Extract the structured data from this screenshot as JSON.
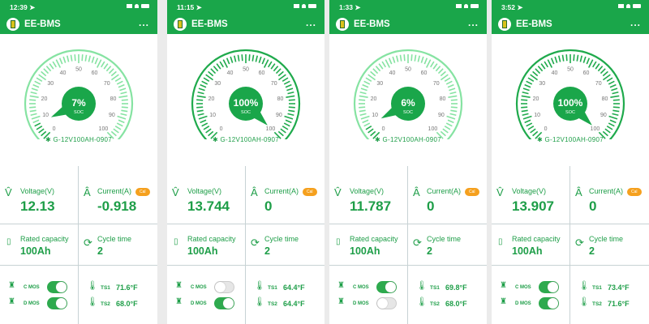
{
  "app_title": "EE-BMS",
  "colors": {
    "header": "#1aa64a",
    "text": "#1e9e48",
    "tick_active": "#1faa4c",
    "tick_inactive": "#86e3a2",
    "cal": "#f5a01e"
  },
  "labels": {
    "soc": "SOC",
    "voltage": "Voltage(V)",
    "current": "Current(A)",
    "cal": "Cal",
    "rated_capacity": "Rated capacity",
    "cycle_time": "Cycle time",
    "c_mos": "C MOS",
    "d_mos": "D MOS",
    "ts1": "TS1",
    "ts2": "TS2",
    "more": "..."
  },
  "gauge_ticks": [
    "0",
    "10",
    "20",
    "30",
    "40",
    "50",
    "60",
    "70",
    "80",
    "90",
    "100"
  ],
  "screens": [
    {
      "time": "12:39",
      "soc": 7,
      "soc_text": "7%",
      "device": "G-12V100AH-0907",
      "voltage": "12.13",
      "current": "-0.918",
      "rated_capacity": "100Ah",
      "cycle_time": "2",
      "c_mos_on": true,
      "d_mos_on": true,
      "ts1": "71.6°F",
      "ts2": "68.0°F"
    },
    {
      "time": "11:15",
      "soc": 100,
      "soc_text": "100%",
      "device": "G-12V100AH-0907",
      "voltage": "13.744",
      "current": "0",
      "rated_capacity": "100Ah",
      "cycle_time": "2",
      "c_mos_on": false,
      "d_mos_on": true,
      "ts1": "64.4°F",
      "ts2": "64.4°F"
    },
    {
      "time": "1:33",
      "soc": 6,
      "soc_text": "6%",
      "device": "G-12V100AH-0907",
      "voltage": "11.787",
      "current": "0",
      "rated_capacity": "100Ah",
      "cycle_time": "2",
      "c_mos_on": true,
      "d_mos_on": false,
      "ts1": "69.8°F",
      "ts2": "68.0°F"
    },
    {
      "time": "3:52",
      "soc": 100,
      "soc_text": "100%",
      "device": "G-12V100AH-0907",
      "voltage": "13.907",
      "current": "0",
      "rated_capacity": "100Ah",
      "cycle_time": "2",
      "c_mos_on": true,
      "d_mos_on": true,
      "ts1": "73.4°F",
      "ts2": "71.6°F"
    }
  ]
}
